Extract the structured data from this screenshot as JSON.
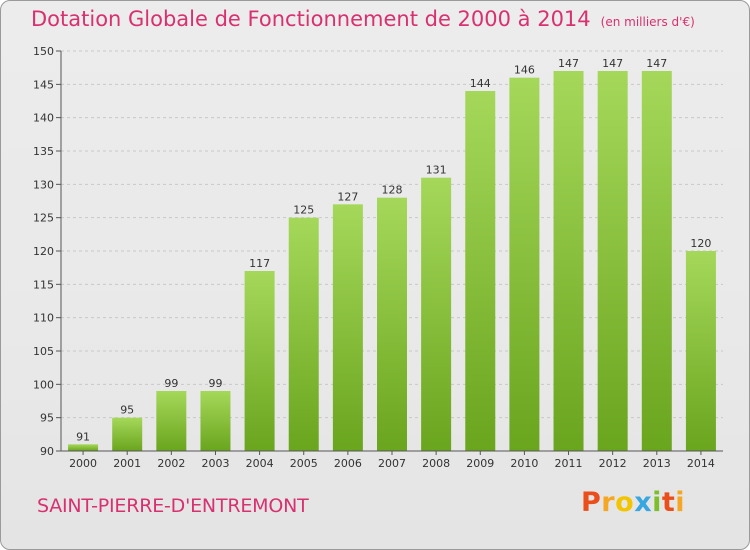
{
  "header": {
    "title": "Dotation Globale de Fonctionnement de 2000 à 2014",
    "subtitle": "(en milliers d'€)"
  },
  "footer": {
    "commune": "SAINT-PIERRE-D'ENTREMONT",
    "logo": "Proxiti"
  },
  "colors": {
    "title": "#d9306f",
    "bar_light": "#a5d85a",
    "bar_dark": "#6aa51e",
    "grid": "#c8c8c8"
  },
  "chart_data": {
    "type": "bar",
    "title": "Dotation Globale de Fonctionnement de 2000 à 2014",
    "subtitle": "(en milliers d'€)",
    "xlabel": "",
    "ylabel": "",
    "categories": [
      "2000",
      "2001",
      "2002",
      "2003",
      "2004",
      "2005",
      "2006",
      "2007",
      "2008",
      "2009",
      "2010",
      "2011",
      "2012",
      "2013",
      "2014"
    ],
    "values": [
      91,
      95,
      99,
      99,
      117,
      125,
      127,
      128,
      131,
      144,
      146,
      147,
      147,
      147,
      120
    ],
    "ylim": [
      90,
      150
    ],
    "yticks": [
      90,
      95,
      100,
      105,
      110,
      115,
      120,
      125,
      130,
      135,
      140,
      145,
      150
    ],
    "grid": true,
    "legend": "none"
  }
}
